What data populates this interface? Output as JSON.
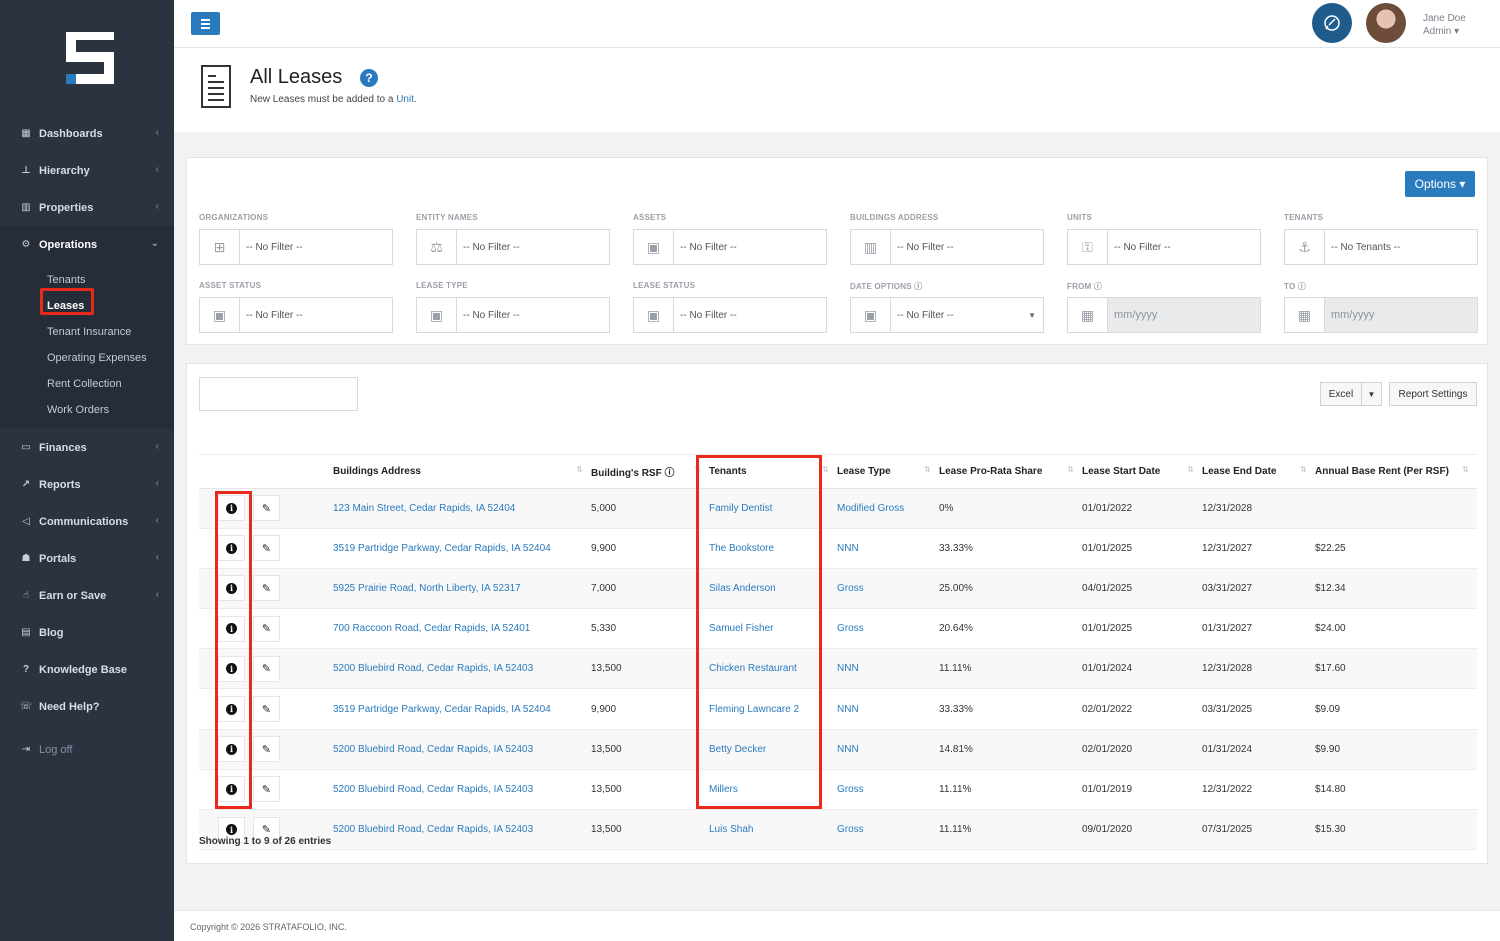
{
  "sidebar": {
    "items": [
      {
        "label": "Dashboards",
        "icon": "grid-icon",
        "chev": "‹"
      },
      {
        "label": "Hierarchy",
        "icon": "sitemap-icon",
        "chev": "‹"
      },
      {
        "label": "Properties",
        "icon": "building-icon",
        "chev": "‹"
      },
      {
        "label": "Operations",
        "icon": "cogs-icon",
        "chev": "⌄"
      }
    ],
    "subitems": [
      "Tenants",
      "Leases",
      "Tenant Insurance",
      "Operating Expenses",
      "Rent Collection",
      "Work Orders"
    ],
    "items_after": [
      {
        "label": "Finances",
        "icon": "money-icon",
        "chev": "‹"
      },
      {
        "label": "Reports",
        "icon": "chart-icon",
        "chev": "‹"
      },
      {
        "label": "Communications",
        "icon": "megaphone-icon",
        "chev": "‹"
      },
      {
        "label": "Portals",
        "icon": "users-icon",
        "chev": "‹"
      },
      {
        "label": "Earn or Save",
        "icon": "thumbs-up-icon",
        "chev": "‹"
      },
      {
        "label": "Blog",
        "icon": "newspaper-icon",
        "chev": ""
      },
      {
        "label": "Knowledge Base",
        "icon": "question-circle-icon",
        "chev": ""
      },
      {
        "label": "Need Help?",
        "icon": "chat-icon",
        "chev": ""
      }
    ],
    "logoff": "Log off"
  },
  "topbar": {
    "user_name": "Jane Doe",
    "user_role": "Admin ▾"
  },
  "page": {
    "title": "All Leases",
    "subtitle_prefix": "New Leases must be added to a ",
    "subtitle_link": "Unit",
    "subtitle_suffix": "."
  },
  "filters": {
    "options_label": "Options ▾",
    "row1": [
      {
        "label": "ORGANIZATIONS",
        "value": "-- No Filter --",
        "icon": "org-icon"
      },
      {
        "label": "ENTITY NAMES",
        "value": "-- No Filter --",
        "icon": "scale-icon"
      },
      {
        "label": "ASSETS",
        "value": "-- No Filter --",
        "icon": "asset-icon"
      },
      {
        "label": "BUILDINGS ADDRESS",
        "value": "-- No Filter --",
        "icon": "building-icon"
      },
      {
        "label": "UNITS",
        "value": "-- No Filter --",
        "icon": "key-icon"
      },
      {
        "label": "TENANTS",
        "value": "-- No Tenants --",
        "icon": "anchor-icon"
      }
    ],
    "row2": [
      {
        "label": "ASSET STATUS",
        "value": "-- No Filter --",
        "icon": "asset-icon"
      },
      {
        "label": "LEASE TYPE",
        "value": "-- No Filter --",
        "icon": "asset-icon"
      },
      {
        "label": "LEASE STATUS",
        "value": "-- No Filter --",
        "icon": "asset-icon"
      },
      {
        "label": "DATE OPTIONS ⓘ",
        "value": "-- No Filter --",
        "icon": "asset-icon"
      },
      {
        "label": "FROM ⓘ",
        "value": "mm/yyyy",
        "icon": "calendar-icon"
      },
      {
        "label": "TO ⓘ",
        "value": "mm/yyyy",
        "icon": "calendar-icon"
      }
    ]
  },
  "table": {
    "excel_label": "Excel",
    "excel_caret": "▼",
    "report_settings_label": "Report Settings",
    "columns": [
      "",
      "",
      "Buildings Address",
      "Building's RSF ⓘ",
      "Tenants",
      "Lease Type",
      "Lease Pro-Rata Share",
      "Lease Start Date",
      "Lease End Date",
      "Annual Base Rent (Per RSF)"
    ],
    "rows": [
      [
        "123 Main Street, Cedar Rapids, IA 52404",
        "5,000",
        "Family Dentist",
        "Modified Gross",
        "0%",
        "01/01/2022",
        "12/31/2028",
        ""
      ],
      [
        "3519 Partridge Parkway, Cedar Rapids, IA 52404",
        "9,900",
        "The Bookstore",
        "NNN",
        "33.33%",
        "01/01/2025",
        "12/31/2027",
        "$22.25"
      ],
      [
        "5925 Prairie Road, North Liberty, IA 52317",
        "7,000",
        "Silas Anderson",
        "Gross",
        "25.00%",
        "04/01/2025",
        "03/31/2027",
        "$12.34"
      ],
      [
        "700 Raccoon Road, Cedar Rapids, IA 52401",
        "5,330",
        "Samuel Fisher",
        "Gross",
        "20.64%",
        "01/01/2025",
        "01/31/2027",
        "$24.00"
      ],
      [
        "5200 Bluebird Road, Cedar Rapids, IA 52403",
        "13,500",
        "Chicken Restaurant",
        "NNN",
        "11.11%",
        "01/01/2024",
        "12/31/2028",
        "$17.60"
      ],
      [
        "3519 Partridge Parkway, Cedar Rapids, IA 52404",
        "9,900",
        "Fleming Lawncare 2",
        "NNN",
        "33.33%",
        "02/01/2022",
        "03/31/2025",
        "$9.09"
      ],
      [
        "5200 Bluebird Road, Cedar Rapids, IA 52403",
        "13,500",
        "Betty Decker",
        "NNN",
        "14.81%",
        "02/01/2020",
        "01/31/2024",
        "$9.90"
      ],
      [
        "5200 Bluebird Road, Cedar Rapids, IA 52403",
        "13,500",
        "Millers",
        "Gross",
        "11.11%",
        "01/01/2019",
        "12/31/2022",
        "$14.80"
      ],
      [
        "5200 Bluebird Road, Cedar Rapids, IA 52403",
        "13,500",
        "Luis Shah",
        "Gross",
        "11.11%",
        "09/01/2020",
        "07/31/2025",
        "$15.30"
      ]
    ],
    "showing": "Showing 1 to 9 of 26 entries"
  },
  "footer": {
    "copyright": "Copyright © 2026 STRATAFOLIO, INC."
  },
  "colors": {
    "sidebar": "#2b3240",
    "accent": "#2a7bbd",
    "highlight": "#e8291c"
  }
}
